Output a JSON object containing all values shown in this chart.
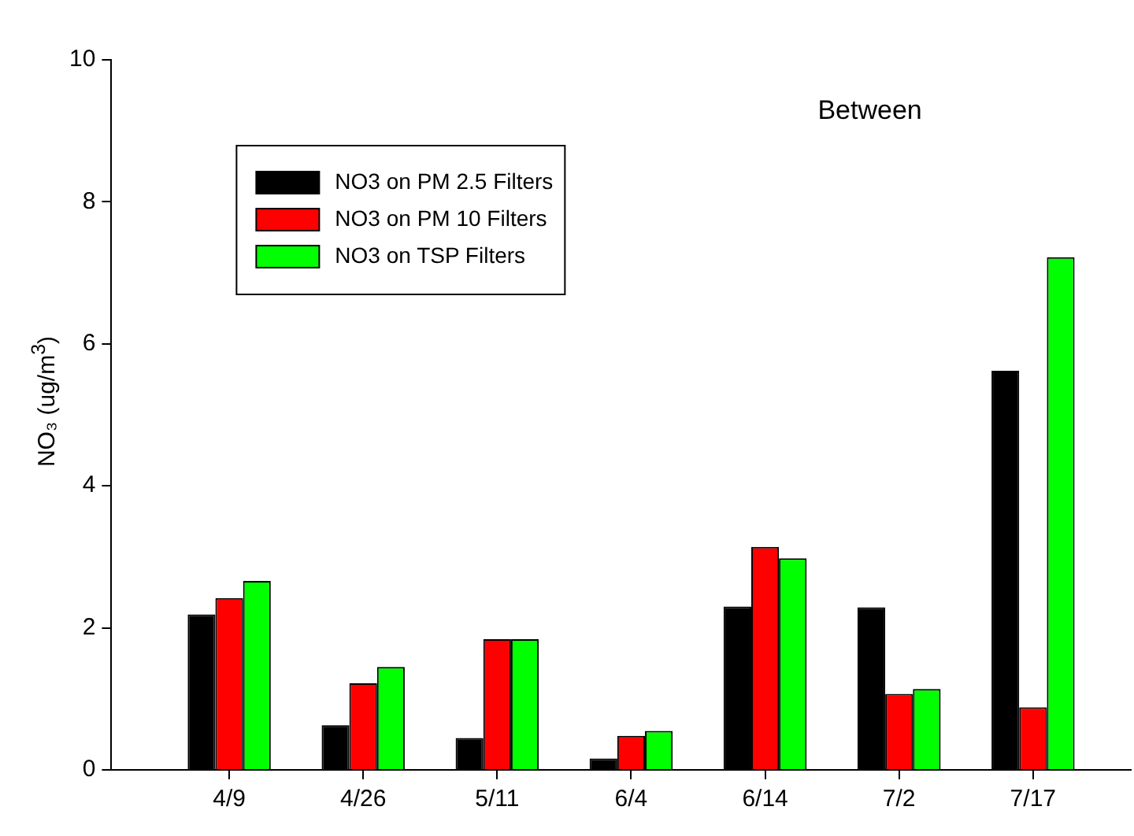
{
  "chart_data": {
    "type": "bar",
    "title": "Between",
    "ylabel": "NO₃ (ug/m$^{3}$)",
    "categories": [
      "4/9",
      "4/26",
      "5/11",
      "6/4",
      "6/14",
      "7/2",
      "7/17"
    ],
    "series": [
      {
        "name": "NO3 on PM 2.5 Filters",
        "color": "#000000",
        "values": [
          2.19,
          0.63,
          0.45,
          0.16,
          2.3,
          2.29,
          5.62
        ]
      },
      {
        "name": "NO3 on PM 10 Filters",
        "color": "#ff0000",
        "values": [
          2.42,
          1.22,
          1.84,
          0.48,
          3.14,
          1.07,
          0.88
        ]
      },
      {
        "name": "NO3 on TSP Filters",
        "color": "#00ff00",
        "values": [
          2.66,
          1.45,
          1.84,
          0.55,
          2.98,
          1.14,
          7.22
        ]
      }
    ],
    "ylim": [
      0,
      10
    ],
    "yticks": [
      0,
      2,
      4,
      6,
      8,
      10
    ],
    "grid": false,
    "legend": "top left"
  }
}
